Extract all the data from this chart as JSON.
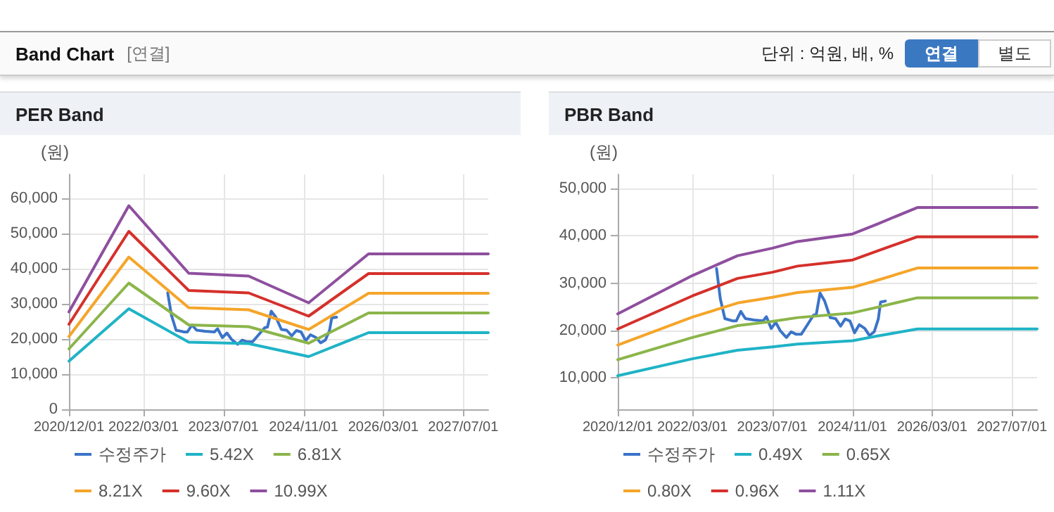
{
  "chart_data": [
    {
      "type": "line",
      "title": "PER Band",
      "ylabel": "(원)",
      "annotations": [
        "Band Chart",
        "[연결]",
        "단위 : 억원, 배, %",
        "연결",
        "별도"
      ],
      "xlim": [
        "2020-12-01",
        "2027-12-01"
      ],
      "xticks": [
        {
          "value": "2020-12-01",
          "label": "2020/12/01"
        },
        {
          "value": "2022-03-01",
          "label": "2022/03/01"
        },
        {
          "value": "2023-07-01",
          "label": "2023/07/01"
        },
        {
          "value": "2024-11-01",
          "label": "2024/11/01"
        },
        {
          "value": "2026-03-01",
          "label": "2026/03/01"
        },
        {
          "value": "2027-07-01",
          "label": "2027/07/01"
        }
      ],
      "ylim": [
        0,
        66800
      ],
      "yticks": [
        {
          "value": 0,
          "label": "0"
        },
        {
          "value": 10000,
          "label": "10,000"
        },
        {
          "value": 20000,
          "label": "20,000"
        },
        {
          "value": 30000,
          "label": "30,000"
        },
        {
          "value": 40000,
          "label": "40,000"
        },
        {
          "value": 50000,
          "label": "50,000"
        },
        {
          "value": 60000,
          "label": "60,000"
        }
      ],
      "grid": true,
      "legend": "bottom",
      "marker": "none",
      "line_style": "solid",
      "series": [
        {
          "name": "수정주가",
          "color": "#3b73c8",
          "x": [
            "2022-07-26",
            "2022-08-18",
            "2022-09-15",
            "2022-11-03",
            "2022-11-23",
            "2022-12-21",
            "2023-01-18",
            "2023-03-11",
            "2023-05-06",
            "2023-05-26",
            "2023-06-24",
            "2023-07-22",
            "2023-08-19",
            "2023-09-25",
            "2023-10-24",
            "2023-11-21",
            "2023-12-25",
            "2024-01-31",
            "2024-03-08",
            "2024-03-25",
            "2024-04-17",
            "2024-05-15",
            "2024-06-18",
            "2024-07-20",
            "2024-08-20",
            "2024-09-17",
            "2024-10-16",
            "2024-11-13",
            "2024-12-12",
            "2025-01-15",
            "2025-02-12",
            "2025-03-13",
            "2025-04-07",
            "2025-04-21",
            "2025-05-20"
          ],
          "values": [
            33100,
            26700,
            22500,
            22000,
            22000,
            24000,
            22500,
            22200,
            22000,
            22900,
            20400,
            21700,
            19900,
            18500,
            19700,
            19200,
            19200,
            21200,
            23200,
            23400,
            27900,
            26200,
            22700,
            22500,
            20900,
            22400,
            22000,
            19500,
            21200,
            20400,
            18900,
            19700,
            22400,
            26000,
            26200
          ]
        },
        {
          "name": "5.42X",
          "color": "#1fb3c6",
          "x": [
            "2020-12-01",
            "2021-12-01",
            "2022-12-01",
            "2023-12-01",
            "2024-12-01",
            "2025-12-01",
            "2027-12-01"
          ],
          "values": [
            13700,
            28600,
            19100,
            18700,
            15000,
            21800,
            21800
          ]
        },
        {
          "name": "6.81X",
          "color": "#8bb54a",
          "x": [
            "2020-12-01",
            "2021-12-01",
            "2022-12-01",
            "2023-12-01",
            "2024-12-01",
            "2025-12-01",
            "2027-12-01"
          ],
          "values": [
            17200,
            35900,
            24000,
            23500,
            18800,
            27400,
            27400
          ]
        },
        {
          "name": "8.21X",
          "color": "#f5a52a",
          "x": [
            "2020-12-01",
            "2021-12-01",
            "2022-12-01",
            "2023-12-01",
            "2024-12-01",
            "2025-12-01",
            "2027-12-01"
          ],
          "values": [
            20700,
            43300,
            28900,
            28300,
            22700,
            33000,
            33000
          ]
        },
        {
          "name": "9.60X",
          "color": "#d5302b",
          "x": [
            "2020-12-01",
            "2021-12-01",
            "2022-12-01",
            "2023-12-01",
            "2024-12-01",
            "2025-12-01",
            "2027-12-01"
          ],
          "values": [
            24200,
            50600,
            33800,
            33100,
            26500,
            38600,
            38600
          ]
        },
        {
          "name": "10.99X",
          "color": "#8e4f9e",
          "x": [
            "2020-12-01",
            "2021-12-01",
            "2022-12-01",
            "2023-12-01",
            "2024-12-01",
            "2025-12-01",
            "2027-12-01"
          ],
          "values": [
            27700,
            57900,
            38700,
            37900,
            30300,
            44200,
            44200
          ]
        }
      ]
    },
    {
      "type": "line",
      "title": "PBR Band",
      "ylabel": "(원)",
      "xlim": [
        "2020-12-01",
        "2027-12-01"
      ],
      "xticks": [
        {
          "value": "2020-12-01",
          "label": "2020/12/01"
        },
        {
          "value": "2022-03-01",
          "label": "2022/03/01"
        },
        {
          "value": "2023-07-01",
          "label": "2023/07/01"
        },
        {
          "value": "2024-11-01",
          "label": "2024/11/01"
        },
        {
          "value": "2026-03-01",
          "label": "2026/03/01"
        },
        {
          "value": "2027-07-01",
          "label": "2027/07/01"
        }
      ],
      "ylim": [
        3300,
        53000
      ],
      "yticks": [
        {
          "value": 10000,
          "label": "10,000"
        },
        {
          "value": 20000,
          "label": "20,000"
        },
        {
          "value": 30000,
          "label": "30,000"
        },
        {
          "value": 40000,
          "label": "40,000"
        },
        {
          "value": 50000,
          "label": "50,000"
        }
      ],
      "grid": true,
      "legend": "bottom",
      "marker": "none",
      "line_style": "solid",
      "series": [
        {
          "name": "수정주가",
          "color": "#3b73c8",
          "x": [
            "2022-07-26",
            "2022-08-18",
            "2022-09-15",
            "2022-11-03",
            "2022-11-23",
            "2022-12-21",
            "2023-01-18",
            "2023-03-11",
            "2023-05-06",
            "2023-05-26",
            "2023-06-24",
            "2023-07-22",
            "2023-08-19",
            "2023-09-25",
            "2023-10-24",
            "2023-11-21",
            "2023-12-25",
            "2024-01-31",
            "2024-03-08",
            "2024-03-25",
            "2024-04-17",
            "2024-05-15",
            "2024-06-18",
            "2024-07-20",
            "2024-08-20",
            "2024-09-17",
            "2024-10-16",
            "2024-11-13",
            "2024-12-12",
            "2025-01-15",
            "2025-02-12",
            "2025-03-13",
            "2025-04-07",
            "2025-04-21",
            "2025-05-20"
          ],
          "values": [
            33100,
            26700,
            22500,
            22000,
            22000,
            24000,
            22500,
            22200,
            22000,
            22900,
            20400,
            21700,
            19900,
            18500,
            19700,
            19200,
            19200,
            21200,
            23200,
            23400,
            27900,
            26200,
            22700,
            22500,
            20900,
            22400,
            22000,
            19500,
            21200,
            20400,
            18900,
            19700,
            22400,
            26000,
            26200
          ]
        },
        {
          "name": "0.49X",
          "color": "#1fb3c6",
          "x": [
            "2020-12-01",
            "2022-03-01",
            "2022-12-01",
            "2023-07-01",
            "2023-12-01",
            "2024-11-01",
            "2025-04-01",
            "2025-12-01",
            "2027-12-01"
          ],
          "values": [
            10400,
            14000,
            15800,
            16500,
            17100,
            17800,
            18800,
            20300,
            20300
          ]
        },
        {
          "name": "0.65X",
          "color": "#8bb54a",
          "x": [
            "2020-12-01",
            "2022-03-01",
            "2022-12-01",
            "2023-07-01",
            "2023-12-01",
            "2024-11-01",
            "2025-04-01",
            "2025-12-01",
            "2027-12-01"
          ],
          "values": [
            13800,
            18500,
            21000,
            21900,
            22700,
            23700,
            24900,
            26900,
            26900
          ]
        },
        {
          "name": "0.80X",
          "color": "#f5a52a",
          "x": [
            "2020-12-01",
            "2022-03-01",
            "2022-12-01",
            "2023-07-01",
            "2023-12-01",
            "2024-11-01",
            "2025-04-01",
            "2025-12-01",
            "2027-12-01"
          ],
          "values": [
            16900,
            22800,
            25800,
            27000,
            28000,
            29100,
            30600,
            33200,
            33200
          ]
        },
        {
          "name": "0.96X",
          "color": "#d5302b",
          "x": [
            "2020-12-01",
            "2022-03-01",
            "2022-12-01",
            "2023-07-01",
            "2023-12-01",
            "2024-11-01",
            "2025-04-01",
            "2025-12-01",
            "2027-12-01"
          ],
          "values": [
            20300,
            27300,
            31000,
            32300,
            33600,
            34900,
            36800,
            39800,
            39800
          ]
        },
        {
          "name": "1.11X",
          "color": "#8e4f9e",
          "x": [
            "2020-12-01",
            "2022-03-01",
            "2022-12-01",
            "2023-07-01",
            "2023-12-01",
            "2024-11-01",
            "2025-04-01",
            "2025-12-01",
            "2027-12-01"
          ],
          "values": [
            23500,
            31600,
            35800,
            37400,
            38800,
            40400,
            42500,
            46000,
            46000
          ]
        }
      ]
    }
  ]
}
